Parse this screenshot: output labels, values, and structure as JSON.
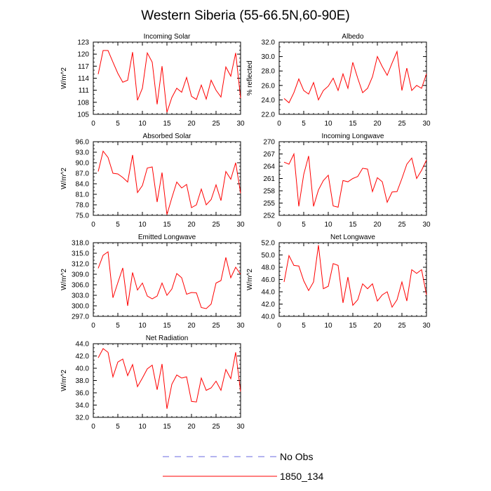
{
  "figure": {
    "title": "Western Siberia (55-66.5N,60-90E)"
  },
  "legend": {
    "items": [
      {
        "label": "No Obs",
        "color": "#6a6ae0",
        "style": "dashed"
      },
      {
        "label": "1850_134",
        "color": "#ff0000",
        "style": "solid"
      }
    ]
  },
  "chart_data": [
    {
      "type": "line",
      "title": "Incoming Solar",
      "ylabel": "W/m^2",
      "xlim": [
        0,
        30
      ],
      "ylim": [
        105,
        123
      ],
      "xticks": [
        0,
        5,
        10,
        15,
        20,
        25,
        30
      ],
      "yticks": [
        "105",
        "108",
        "111",
        "114",
        "117",
        "120",
        "123"
      ],
      "series": [
        {
          "color": "#ff0000",
          "x": [
            1,
            2,
            3,
            4,
            5,
            6,
            7,
            8,
            9,
            10,
            11,
            12,
            13,
            14,
            15,
            16,
            17,
            18,
            19,
            20,
            21,
            22,
            23,
            24,
            25,
            26,
            27,
            28,
            29,
            30
          ],
          "y": [
            115,
            120.9,
            120.9,
            118,
            115.2,
            113,
            113.5,
            120.5,
            108.5,
            111.5,
            120.3,
            118,
            107.5,
            117,
            105.5,
            109.2,
            111.5,
            110.5,
            114.2,
            109.5,
            108.7,
            112.3,
            108.8,
            113.5,
            111,
            109.3,
            116.8,
            114.5,
            120.3,
            109
          ]
        }
      ]
    },
    {
      "type": "line",
      "title": "Albedo",
      "ylabel": "% reflected",
      "xlim": [
        0,
        30
      ],
      "ylim": [
        22,
        32
      ],
      "xticks": [
        0,
        5,
        10,
        15,
        20,
        25,
        30
      ],
      "yticks": [
        "22.0",
        "24.0",
        "26.0",
        "28.0",
        "30.0",
        "32.0"
      ],
      "series": [
        {
          "color": "#ff0000",
          "x": [
            1,
            2,
            3,
            4,
            5,
            6,
            7,
            8,
            9,
            10,
            11,
            12,
            13,
            14,
            15,
            16,
            17,
            18,
            19,
            20,
            21,
            22,
            23,
            24,
            25,
            26,
            27,
            28,
            29,
            30
          ],
          "y": [
            24.2,
            23.6,
            25,
            26.9,
            25.3,
            24.8,
            26.4,
            24,
            25.3,
            25.9,
            27,
            25.3,
            27.6,
            25.6,
            29.2,
            27,
            25,
            25.6,
            27.2,
            30,
            28.6,
            27.4,
            29.1,
            30.7,
            25.3,
            28.4,
            25.3,
            26,
            25.6,
            27.6
          ]
        }
      ]
    },
    {
      "type": "line",
      "title": "Absorbed Solar",
      "ylabel": "W/m^2",
      "xlim": [
        0,
        30
      ],
      "ylim": [
        75,
        96
      ],
      "xticks": [
        0,
        5,
        10,
        15,
        20,
        25,
        30
      ],
      "yticks": [
        "75.0",
        "78.0",
        "81.0",
        "84.0",
        "87.0",
        "90.0",
        "93.0",
        "96.0"
      ],
      "series": [
        {
          "color": "#ff0000",
          "x": [
            1,
            2,
            3,
            4,
            5,
            6,
            7,
            8,
            9,
            10,
            11,
            12,
            13,
            14,
            15,
            16,
            17,
            18,
            19,
            20,
            21,
            22,
            23,
            24,
            25,
            26,
            27,
            28,
            29,
            30
          ],
          "y": [
            87.5,
            93.3,
            91.5,
            87,
            86.8,
            85.8,
            84.5,
            92.2,
            81.5,
            83.5,
            88.5,
            88.8,
            78.8,
            87.2,
            75.2,
            80,
            84.5,
            82.8,
            83.8,
            77.2,
            78,
            82.5,
            78,
            79.5,
            83.7,
            79.2,
            87.5,
            85.3,
            90,
            81.3
          ]
        }
      ]
    },
    {
      "type": "line",
      "title": "Incoming Longwave",
      "ylabel": "",
      "xlim": [
        0,
        30
      ],
      "ylim": [
        252,
        270
      ],
      "xticks": [
        0,
        5,
        10,
        15,
        20,
        25,
        30
      ],
      "yticks": [
        "252",
        "255",
        "258",
        "261",
        "264",
        "267",
        "270"
      ],
      "series": [
        {
          "color": "#ff0000",
          "x": [
            1,
            2,
            3,
            4,
            5,
            6,
            7,
            8,
            9,
            10,
            11,
            12,
            13,
            14,
            15,
            16,
            17,
            18,
            19,
            20,
            21,
            22,
            23,
            24,
            25,
            26,
            27,
            28,
            29,
            30
          ],
          "y": [
            265,
            264.5,
            267,
            254.2,
            262,
            266.5,
            254.2,
            258.2,
            260.5,
            261.8,
            254.3,
            254,
            260.5,
            260.2,
            261,
            261.5,
            263.5,
            263.3,
            257.8,
            261.2,
            260.2,
            255.2,
            257.7,
            257.8,
            261,
            264.5,
            266,
            261,
            263,
            265.5
          ]
        }
      ]
    },
    {
      "type": "line",
      "title": "Emitted Longwave",
      "ylabel": "W/m^2",
      "xlim": [
        0,
        30
      ],
      "ylim": [
        297,
        318
      ],
      "xticks": [
        0,
        5,
        10,
        15,
        20,
        25,
        30
      ],
      "yticks": [
        "297.0",
        "300.0",
        "303.0",
        "306.0",
        "309.0",
        "312.0",
        "315.0",
        "318.0"
      ],
      "series": [
        {
          "color": "#ff0000",
          "x": [
            1,
            2,
            3,
            4,
            5,
            6,
            7,
            8,
            9,
            10,
            11,
            12,
            13,
            14,
            15,
            16,
            17,
            18,
            19,
            20,
            21,
            22,
            23,
            24,
            25,
            26,
            27,
            28,
            29,
            30
          ],
          "y": [
            310.7,
            314.4,
            315.4,
            302.3,
            306.6,
            310.8,
            300,
            309.5,
            304.5,
            306.5,
            302.8,
            302,
            302.8,
            306.5,
            303,
            304.8,
            309.2,
            308,
            303.3,
            303.8,
            303.7,
            299.5,
            299.2,
            300.5,
            306.5,
            307.2,
            313.8,
            308,
            311,
            309
          ]
        }
      ]
    },
    {
      "type": "line",
      "title": "Net Longwave",
      "ylabel": "W/m^2",
      "xlim": [
        0,
        30
      ],
      "ylim": [
        40,
        52
      ],
      "xticks": [
        0,
        5,
        10,
        15,
        20,
        25,
        30
      ],
      "yticks": [
        "40.0",
        "42.0",
        "44.0",
        "46.0",
        "48.0",
        "50.0",
        "52.0"
      ],
      "series": [
        {
          "color": "#ff0000",
          "x": [
            1,
            2,
            3,
            4,
            5,
            6,
            7,
            8,
            9,
            10,
            11,
            12,
            13,
            14,
            15,
            16,
            17,
            18,
            19,
            20,
            21,
            22,
            23,
            24,
            25,
            26,
            27,
            28,
            29,
            30
          ],
          "y": [
            45.6,
            49.9,
            48.3,
            48.2,
            45.8,
            44.2,
            45.6,
            51.6,
            44.5,
            44.9,
            48.6,
            48.3,
            42.2,
            46.4,
            41.8,
            42.7,
            45.3,
            44.5,
            45.3,
            42.5,
            43.5,
            44,
            41.5,
            42.7,
            45.6,
            42.5,
            47.6,
            47,
            47.6,
            43.5
          ]
        }
      ]
    },
    {
      "type": "line",
      "title": "Net Radiation",
      "ylabel": "W/m^2",
      "xlim": [
        0,
        30
      ],
      "ylim": [
        32,
        44
      ],
      "xticks": [
        0,
        5,
        10,
        15,
        20,
        25,
        30
      ],
      "yticks": [
        "32.0",
        "34.0",
        "36.0",
        "38.0",
        "40.0",
        "42.0",
        "44.0"
      ],
      "series": [
        {
          "color": "#ff0000",
          "x": [
            1,
            2,
            3,
            4,
            5,
            6,
            7,
            8,
            9,
            10,
            11,
            12,
            13,
            14,
            15,
            16,
            17,
            18,
            19,
            20,
            21,
            22,
            23,
            24,
            25,
            26,
            27,
            28,
            29,
            30
          ],
          "y": [
            41.7,
            43.2,
            42.6,
            38.6,
            41,
            41.5,
            38.8,
            40.6,
            37,
            38.4,
            39.9,
            40.5,
            36.5,
            40.7,
            33.4,
            37.4,
            38.9,
            38.4,
            38.6,
            34.6,
            34.5,
            38.4,
            36.4,
            36.8,
            37.9,
            36.4,
            39.8,
            38.3,
            42.6,
            36.2
          ]
        }
      ]
    }
  ]
}
